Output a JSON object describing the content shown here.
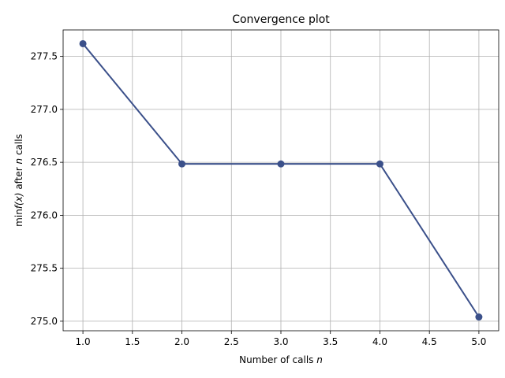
{
  "chart_data": {
    "type": "line",
    "title": "Convergence plot",
    "xlabel": {
      "prefix": "Number of calls ",
      "var": "n"
    },
    "ylabel": {
      "prefix": "min",
      "fx": "f(x)",
      "mid": " after ",
      "var": "n",
      "suffix": " calls"
    },
    "x": [
      1,
      2,
      3,
      4,
      5
    ],
    "series": [
      {
        "values": [
          277.62,
          276.485,
          276.485,
          276.485,
          275.04
        ],
        "color": "#3b508a"
      }
    ],
    "xlim": [
      0.8,
      5.2
    ],
    "ylim": [
      274.91,
      277.75
    ],
    "xticks": [
      "1.0",
      "1.5",
      "2.0",
      "2.5",
      "3.0",
      "3.5",
      "4.0",
      "4.5",
      "5.0"
    ],
    "yticks": [
      "275.0",
      "275.5",
      "276.0",
      "276.5",
      "277.0",
      "277.5"
    ],
    "grid": true,
    "grid_color": "#b0b0b0"
  }
}
